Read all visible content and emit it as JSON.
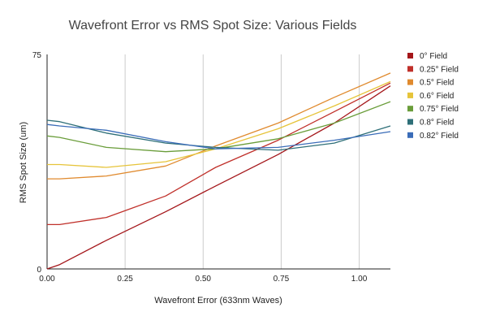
{
  "chart_data": {
    "type": "line",
    "title": "Wavefront Error vs RMS Spot Size: Various Fields",
    "xlabel": "Wavefront Error (633nm Waves)",
    "ylabel": "RMS Spot Size (um)",
    "xlim": [
      0,
      1.1
    ],
    "ylim": [
      0,
      75
    ],
    "x_ticks": [
      0,
      0.25,
      0.5,
      0.75,
      1.0
    ],
    "x_tick_labels": [
      "0.00",
      "0.25",
      "0.50",
      "0.75",
      "1.00"
    ],
    "y_ticks": [
      0,
      75
    ],
    "y_tick_labels": [
      "0",
      "75"
    ],
    "grid": "vertical",
    "legend": "right",
    "series": [
      {
        "name": "0° Field",
        "color": "#a4161a",
        "x": [
          0,
          0.04,
          0.19,
          0.38,
          0.54,
          0.74,
          0.92,
          1.1
        ],
        "y": [
          0,
          1.5,
          10,
          20,
          29,
          40,
          51,
          64
        ]
      },
      {
        "name": "0.25° Field",
        "color": "#c0302a",
        "x": [
          0,
          0.04,
          0.19,
          0.38,
          0.54,
          0.74,
          0.92,
          1.1
        ],
        "y": [
          15.5,
          15.5,
          18,
          25.5,
          35.5,
          45,
          55,
          65
        ]
      },
      {
        "name": "0.5° Field",
        "color": "#e08a2e",
        "x": [
          0,
          0.04,
          0.19,
          0.38,
          0.54,
          0.74,
          0.92,
          1.1
        ],
        "y": [
          31.5,
          31.5,
          32.5,
          36,
          43,
          51,
          60,
          68.5
        ]
      },
      {
        "name": "0.6° Field",
        "color": "#e6c43a",
        "x": [
          0,
          0.04,
          0.19,
          0.38,
          0.54,
          0.74,
          0.92,
          1.1
        ],
        "y": [
          36.5,
          36.5,
          35.5,
          37.5,
          42,
          49,
          57,
          65.5
        ]
      },
      {
        "name": "0.75° Field",
        "color": "#6a9d3a",
        "x": [
          0,
          0.04,
          0.19,
          0.38,
          0.54,
          0.74,
          0.92,
          1.1
        ],
        "y": [
          46.5,
          46,
          42.5,
          41,
          42,
          45.5,
          51,
          58.5
        ]
      },
      {
        "name": "0.8° Field",
        "color": "#2e6f78",
        "x": [
          0,
          0.04,
          0.19,
          0.38,
          0.54,
          0.74,
          0.92,
          1.1
        ],
        "y": [
          52,
          51.5,
          47.5,
          44,
          42.5,
          41.5,
          44,
          50
        ]
      },
      {
        "name": "0.82° Field",
        "color": "#3a6cb8",
        "x": [
          0,
          0.04,
          0.19,
          0.38,
          0.54,
          0.74,
          0.92,
          1.1
        ],
        "y": [
          50.5,
          50,
          48.5,
          44.5,
          42,
          42.5,
          45,
          48
        ]
      }
    ]
  }
}
